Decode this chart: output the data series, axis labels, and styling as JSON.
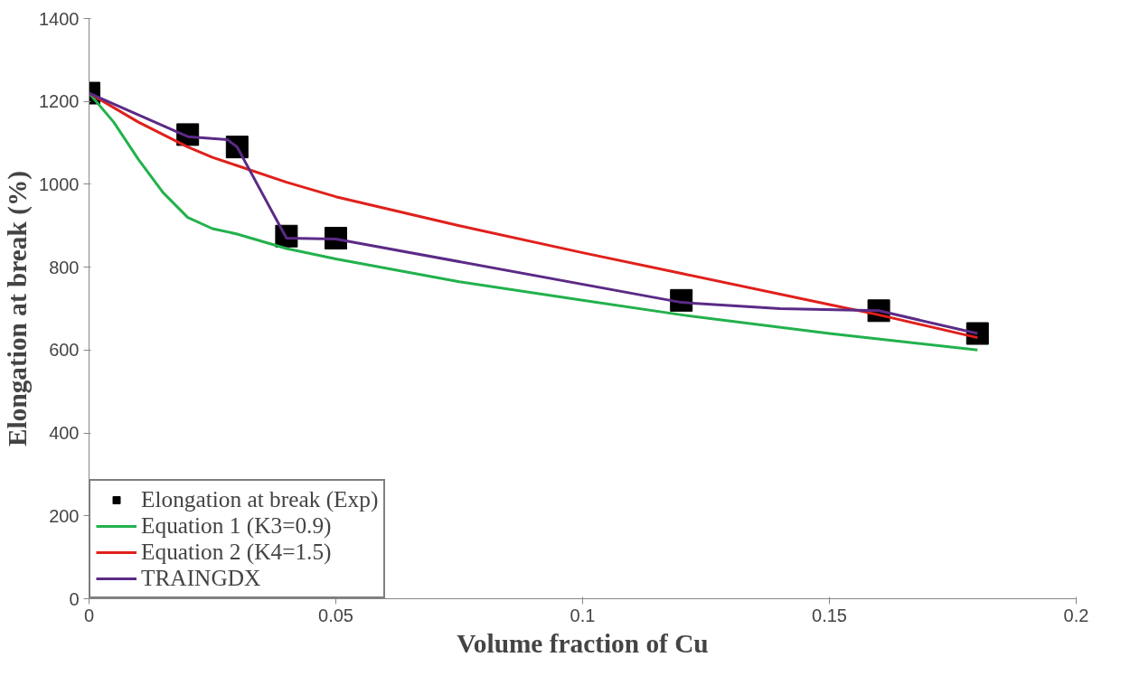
{
  "chart_data": {
    "type": "line",
    "xlabel": "Volume fraction of Cu",
    "ylabel": "Elongation at break (%)",
    "xlim": [
      0,
      0.2
    ],
    "ylim": [
      0,
      1400
    ],
    "xticks": [
      0,
      0.05,
      0.1,
      0.15,
      0.2
    ],
    "yticks": [
      0,
      200,
      400,
      600,
      800,
      1000,
      1200,
      1400
    ],
    "grid": false,
    "legend": "bottom left",
    "marker": "none",
    "series": [
      {
        "name": "Elongation at break (Exp)",
        "type": "scatter",
        "marker": "square",
        "color": "#000000",
        "x": [
          0,
          0.02,
          0.03,
          0.04,
          0.05,
          0.12,
          0.16,
          0.18
        ],
        "values": [
          1220,
          1120,
          1090,
          875,
          870,
          720,
          695,
          640
        ]
      },
      {
        "name": "Equation 1 (K3=0.9)",
        "color": "#22b14c",
        "x": [
          0,
          0.005,
          0.01,
          0.015,
          0.02,
          0.025,
          0.03,
          0.04,
          0.05,
          0.075,
          0.1,
          0.12,
          0.15,
          0.18
        ],
        "values": [
          1220,
          1150,
          1060,
          980,
          920,
          893,
          880,
          845,
          820,
          765,
          720,
          685,
          640,
          600
        ]
      },
      {
        "name": "Equation 2 (K4=1.5)",
        "color": "#e0201b",
        "x": [
          0,
          0.01,
          0.02,
          0.025,
          0.03,
          0.04,
          0.05,
          0.075,
          0.1,
          0.12,
          0.15,
          0.16,
          0.18
        ],
        "values": [
          1220,
          1150,
          1090,
          1065,
          1045,
          1005,
          970,
          900,
          835,
          785,
          710,
          685,
          630
        ]
      },
      {
        "name": "TRAINGDX",
        "color": "#5b2a86",
        "x": [
          0,
          0.02,
          0.028,
          0.03,
          0.04,
          0.05,
          0.12,
          0.14,
          0.16,
          0.18
        ],
        "values": [
          1220,
          1115,
          1108,
          1090,
          870,
          868,
          715,
          700,
          695,
          640
        ]
      }
    ]
  }
}
